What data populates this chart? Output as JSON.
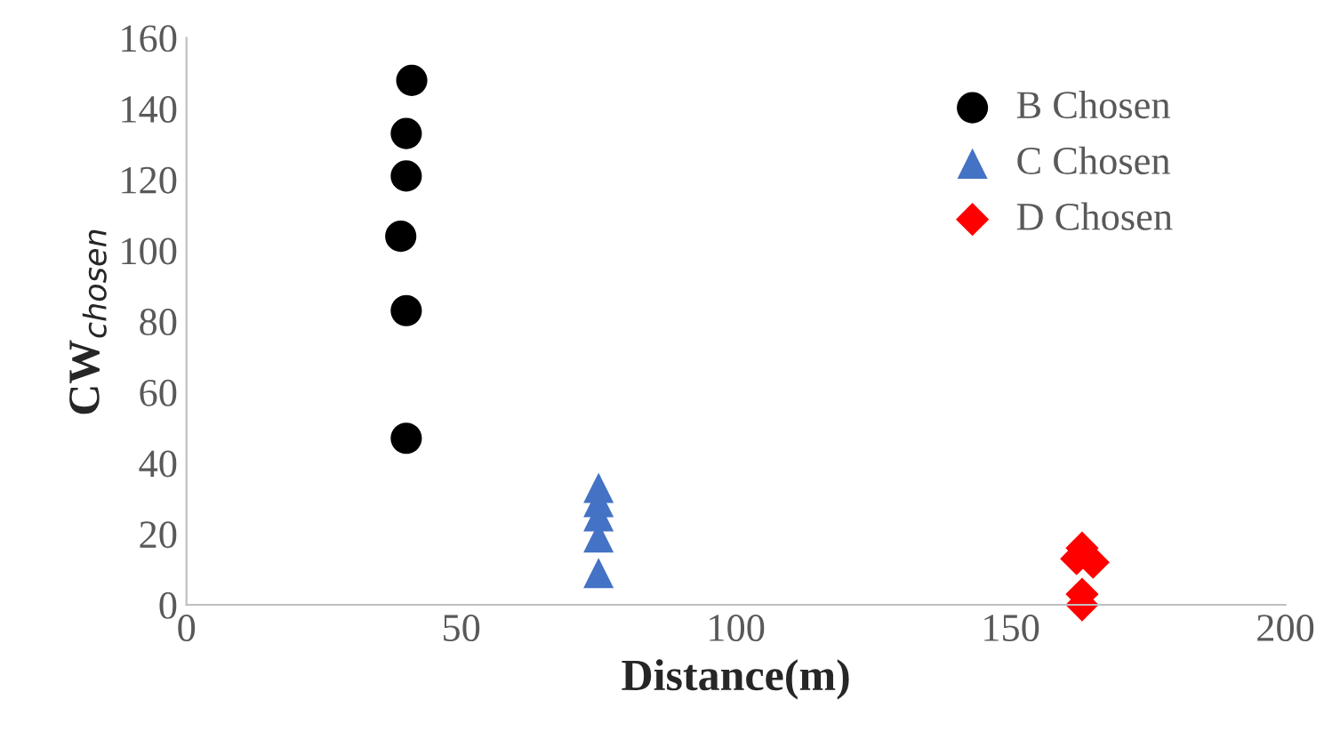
{
  "chart_data": {
    "type": "scatter",
    "xlabel": "Distance(m)",
    "ylabel": "CW$_{chosen}$",
    "xlim": [
      0,
      200
    ],
    "xticks": [
      0,
      50,
      100,
      150,
      200
    ],
    "ylim": [
      0,
      160
    ],
    "yticks": [
      0,
      20,
      40,
      60,
      80,
      100,
      120,
      140,
      160
    ],
    "grid": false,
    "legend": "top right",
    "series": [
      {
        "name": "B Chosen",
        "color": "#000000",
        "marker": "circle",
        "x": [
          41,
          40,
          40,
          39,
          40,
          40
        ],
        "values": [
          148,
          133,
          121,
          104,
          83,
          47
        ]
      },
      {
        "name": "C Chosen",
        "color": "#4472c4",
        "marker": "triangle",
        "x": [
          75,
          75,
          75,
          75,
          75
        ],
        "values": [
          33,
          29,
          25,
          19,
          9
        ]
      },
      {
        "name": "D Chosen",
        "color": "#ff0000",
        "marker": "diamond",
        "x": [
          163,
          162,
          165,
          163,
          163
        ],
        "values": [
          16,
          13,
          12,
          3,
          0
        ]
      }
    ]
  }
}
